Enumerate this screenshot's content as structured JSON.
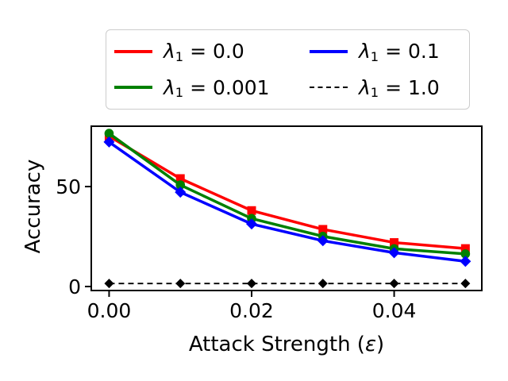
{
  "figure": {
    "background": "#ffffff"
  },
  "legend": {
    "symbol": "λ",
    "subscript": "1",
    "equals": " = ",
    "entries": [
      {
        "value": "0.0",
        "color": "#ff0000",
        "dash": "solid"
      },
      {
        "value": "0.001",
        "color": "#008000",
        "dash": "solid"
      },
      {
        "value": "0.1",
        "color": "#0000ff",
        "dash": "solid"
      },
      {
        "value": "1.0",
        "color": "#000000",
        "dash": "dashed"
      }
    ]
  },
  "labels": {
    "xlabel_prefix": "Attack Strength (",
    "xlabel_symbol": "ε",
    "xlabel_suffix": ")"
  },
  "chart_data": {
    "type": "line",
    "title": "",
    "xlabel": "Attack Strength (ε)",
    "ylabel": "Accuracy",
    "x": [
      0.0,
      0.01,
      0.02,
      0.03,
      0.04,
      0.05
    ],
    "series": [
      {
        "name": "λ1 = 0.0",
        "color": "#ff0000",
        "marker": "square",
        "marker_half": 5.5,
        "linestyle": "solid",
        "linewidth": 3.5,
        "values": [
          75.2,
          54.0,
          38.0,
          28.6,
          22.0,
          19.0
        ]
      },
      {
        "name": "λ1 = 0.001",
        "color": "#008000",
        "marker": "circle",
        "marker_half": 5.8,
        "linestyle": "solid",
        "linewidth": 3.5,
        "values": [
          76.6,
          50.8,
          34.0,
          25.1,
          18.9,
          16.3
        ]
      },
      {
        "name": "λ1 = 0.1",
        "color": "#0000ff",
        "marker": "diamond",
        "marker_half": 7,
        "linestyle": "solid",
        "linewidth": 3.5,
        "values": [
          72.3,
          47.2,
          31.3,
          22.9,
          16.9,
          12.6
        ]
      },
      {
        "name": "λ1 = 1.0",
        "color": "#000000",
        "marker": "diamond",
        "marker_half": 6,
        "linestyle": "dashed",
        "linewidth": 1.8,
        "values": [
          1.5,
          1.5,
          1.5,
          1.5,
          1.5,
          1.5
        ]
      }
    ],
    "xticks": {
      "values": [
        0.0,
        0.02,
        0.04
      ],
      "labels": [
        "0.00",
        "0.02",
        "0.04"
      ]
    },
    "yticks": {
      "values": [
        0,
        50
      ],
      "labels": [
        "0",
        "50"
      ]
    },
    "xlim": [
      -0.0025,
      0.0523
    ],
    "ylim": [
      -2.0,
      80.2
    ],
    "grid": false,
    "legend_position": "top-center outside"
  }
}
